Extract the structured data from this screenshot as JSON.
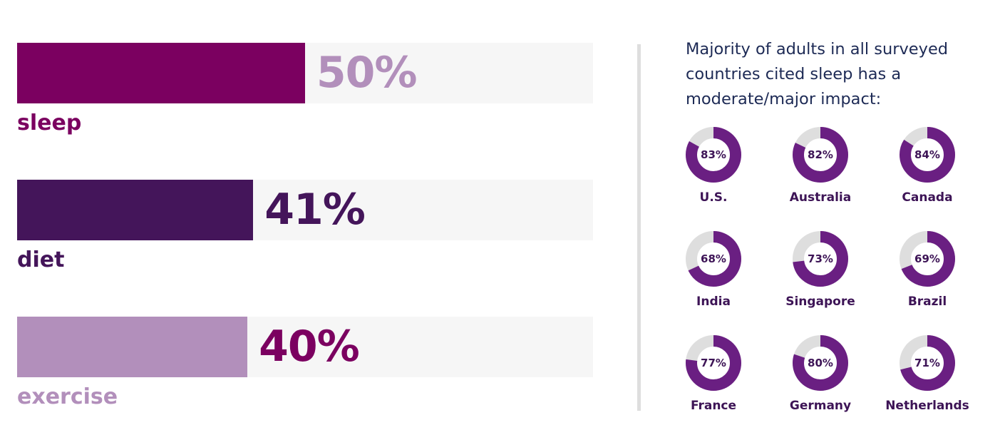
{
  "chart_data": [
    {
      "type": "bar",
      "categories": [
        "sleep",
        "diet",
        "exercise"
      ],
      "values": [
        50,
        41,
        40
      ],
      "value_labels": [
        "50%",
        "41%",
        "40%"
      ],
      "xlim": [
        0,
        100
      ],
      "colors": {
        "sleep": {
          "bar": "#7b0060",
          "value_text": "#b28fbb",
          "label": "#7b0060"
        },
        "diet": {
          "bar": "#44155a",
          "value_text": "#44155a",
          "label": "#44155a"
        },
        "exercise": {
          "bar": "#b28fbb",
          "value_text": "#7b0060",
          "label": "#b28fbb"
        }
      },
      "track_color": "#f6f6f6"
    },
    {
      "type": "pie",
      "title": "Majority of adults in all surveyed countries cited sleep has a moderate/major impact:",
      "categories": [
        "U.S.",
        "Australia",
        "Canada",
        "India",
        "Singapore",
        "Brazil",
        "France",
        "Germany",
        "Netherlands"
      ],
      "values": [
        83,
        82,
        84,
        68,
        73,
        69,
        77,
        80,
        71
      ],
      "value_labels": [
        "83%",
        "82%",
        "84%",
        "68%",
        "73%",
        "69%",
        "77%",
        "80%",
        "71%"
      ],
      "layout": "3x3 grid of donut charts",
      "colors": {
        "filled": "#6a1f82",
        "remainder": "#dedede",
        "text": "#3d1456"
      }
    }
  ]
}
